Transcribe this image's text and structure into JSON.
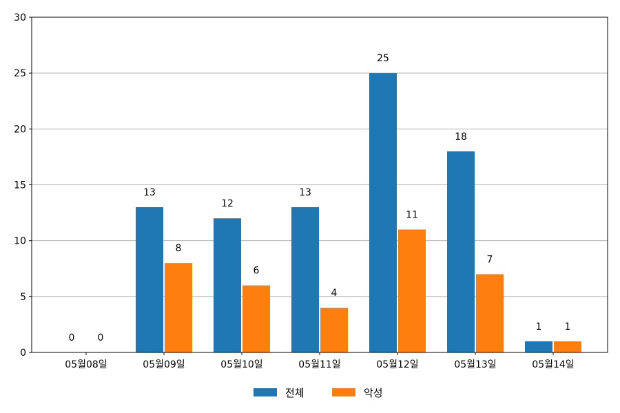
{
  "chart_data": {
    "type": "bar",
    "categories": [
      "05월08일",
      "05월09일",
      "05월10일",
      "05월11일",
      "05월12일",
      "05월13일",
      "05월14일"
    ],
    "series": [
      {
        "name": "전체",
        "values": [
          0,
          13,
          12,
          13,
          25,
          18,
          1
        ],
        "color": "#1f77b4"
      },
      {
        "name": "악성",
        "values": [
          0,
          8,
          6,
          4,
          11,
          7,
          1
        ],
        "color": "#ff7f0e"
      }
    ],
    "ylim": [
      0,
      30
    ],
    "yticks": [
      "0",
      "5",
      "10",
      "15",
      "20",
      "25",
      "30"
    ],
    "grid": "horizontal",
    "legend_position": "bottom-center",
    "data_labels": true
  }
}
